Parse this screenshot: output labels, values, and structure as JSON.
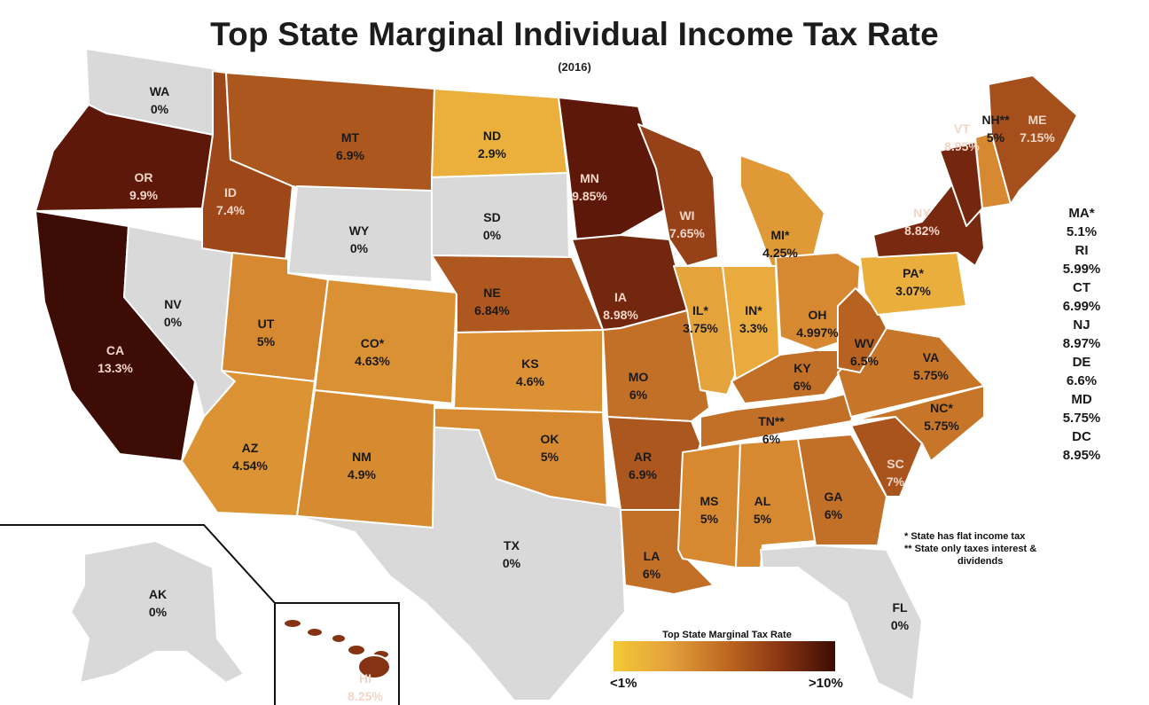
{
  "title": "Top State Marginal Individual Income Tax Rate",
  "subtitle": "(2016)",
  "states": [
    {
      "abbr": "WA",
      "rate": "0%"
    },
    {
      "abbr": "OR",
      "rate": "9.9%"
    },
    {
      "abbr": "CA",
      "rate": "13.3%"
    },
    {
      "abbr": "NV",
      "rate": "0%"
    },
    {
      "abbr": "ID",
      "rate": "7.4%"
    },
    {
      "abbr": "MT",
      "rate": "6.9%"
    },
    {
      "abbr": "WY",
      "rate": "0%"
    },
    {
      "abbr": "UT",
      "rate": "5%"
    },
    {
      "abbr": "AZ",
      "rate": "4.54%"
    },
    {
      "abbr": "CO*",
      "rate": "4.63%"
    },
    {
      "abbr": "NM",
      "rate": "4.9%"
    },
    {
      "abbr": "ND",
      "rate": "2.9%"
    },
    {
      "abbr": "SD",
      "rate": "0%"
    },
    {
      "abbr": "NE",
      "rate": "6.84%"
    },
    {
      "abbr": "KS",
      "rate": "4.6%"
    },
    {
      "abbr": "OK",
      "rate": "5%"
    },
    {
      "abbr": "TX",
      "rate": "0%"
    },
    {
      "abbr": "MN",
      "rate": "9.85%"
    },
    {
      "abbr": "IA",
      "rate": "8.98%"
    },
    {
      "abbr": "MO",
      "rate": "6%"
    },
    {
      "abbr": "AR",
      "rate": "6.9%"
    },
    {
      "abbr": "LA",
      "rate": "6%"
    },
    {
      "abbr": "WI",
      "rate": "7.65%"
    },
    {
      "abbr": "IL*",
      "rate": "3.75%"
    },
    {
      "abbr": "MI*",
      "rate": "4.25%"
    },
    {
      "abbr": "IN*",
      "rate": "3.3%"
    },
    {
      "abbr": "OH",
      "rate": "4.997%"
    },
    {
      "abbr": "KY",
      "rate": "6%"
    },
    {
      "abbr": "TN**",
      "rate": "6%"
    },
    {
      "abbr": "MS",
      "rate": "5%"
    },
    {
      "abbr": "AL",
      "rate": "5%"
    },
    {
      "abbr": "GA",
      "rate": "6%"
    },
    {
      "abbr": "FL",
      "rate": "0%"
    },
    {
      "abbr": "SC",
      "rate": "7%"
    },
    {
      "abbr": "NC*",
      "rate": "5.75%"
    },
    {
      "abbr": "VA",
      "rate": "5.75%"
    },
    {
      "abbr": "WV",
      "rate": "6.5%"
    },
    {
      "abbr": "PA*",
      "rate": "3.07%"
    },
    {
      "abbr": "NY",
      "rate": "8.82%"
    },
    {
      "abbr": "VT",
      "rate": "8.95%"
    },
    {
      "abbr": "NH**",
      "rate": "5%"
    },
    {
      "abbr": "ME",
      "rate": "7.15%"
    },
    {
      "abbr": "AK",
      "rate": "0%"
    },
    {
      "abbr": "HI",
      "rate": "8.25%"
    }
  ],
  "side_list": [
    {
      "abbr": "MA*",
      "rate": "5.1%"
    },
    {
      "abbr": "RI",
      "rate": "5.99%"
    },
    {
      "abbr": "CT",
      "rate": "6.99%"
    },
    {
      "abbr": "NJ",
      "rate": "8.97%"
    },
    {
      "abbr": "DE",
      "rate": "6.6%"
    },
    {
      "abbr": "MD",
      "rate": "5.75%"
    },
    {
      "abbr": "DC",
      "rate": "8.95%"
    }
  ],
  "notes": {
    "flat": "* State has flat income tax",
    "interest_line1": "** State only taxes interest &",
    "interest_line2": "dividends"
  },
  "legend": {
    "title": "Top State Marginal Tax Rate",
    "low": "<1%",
    "high": ">10%"
  },
  "colors": {
    "zero": "#d9d9d9",
    "low": "#f4c935",
    "high": "#3c0c05",
    "border": "#ffffff"
  }
}
